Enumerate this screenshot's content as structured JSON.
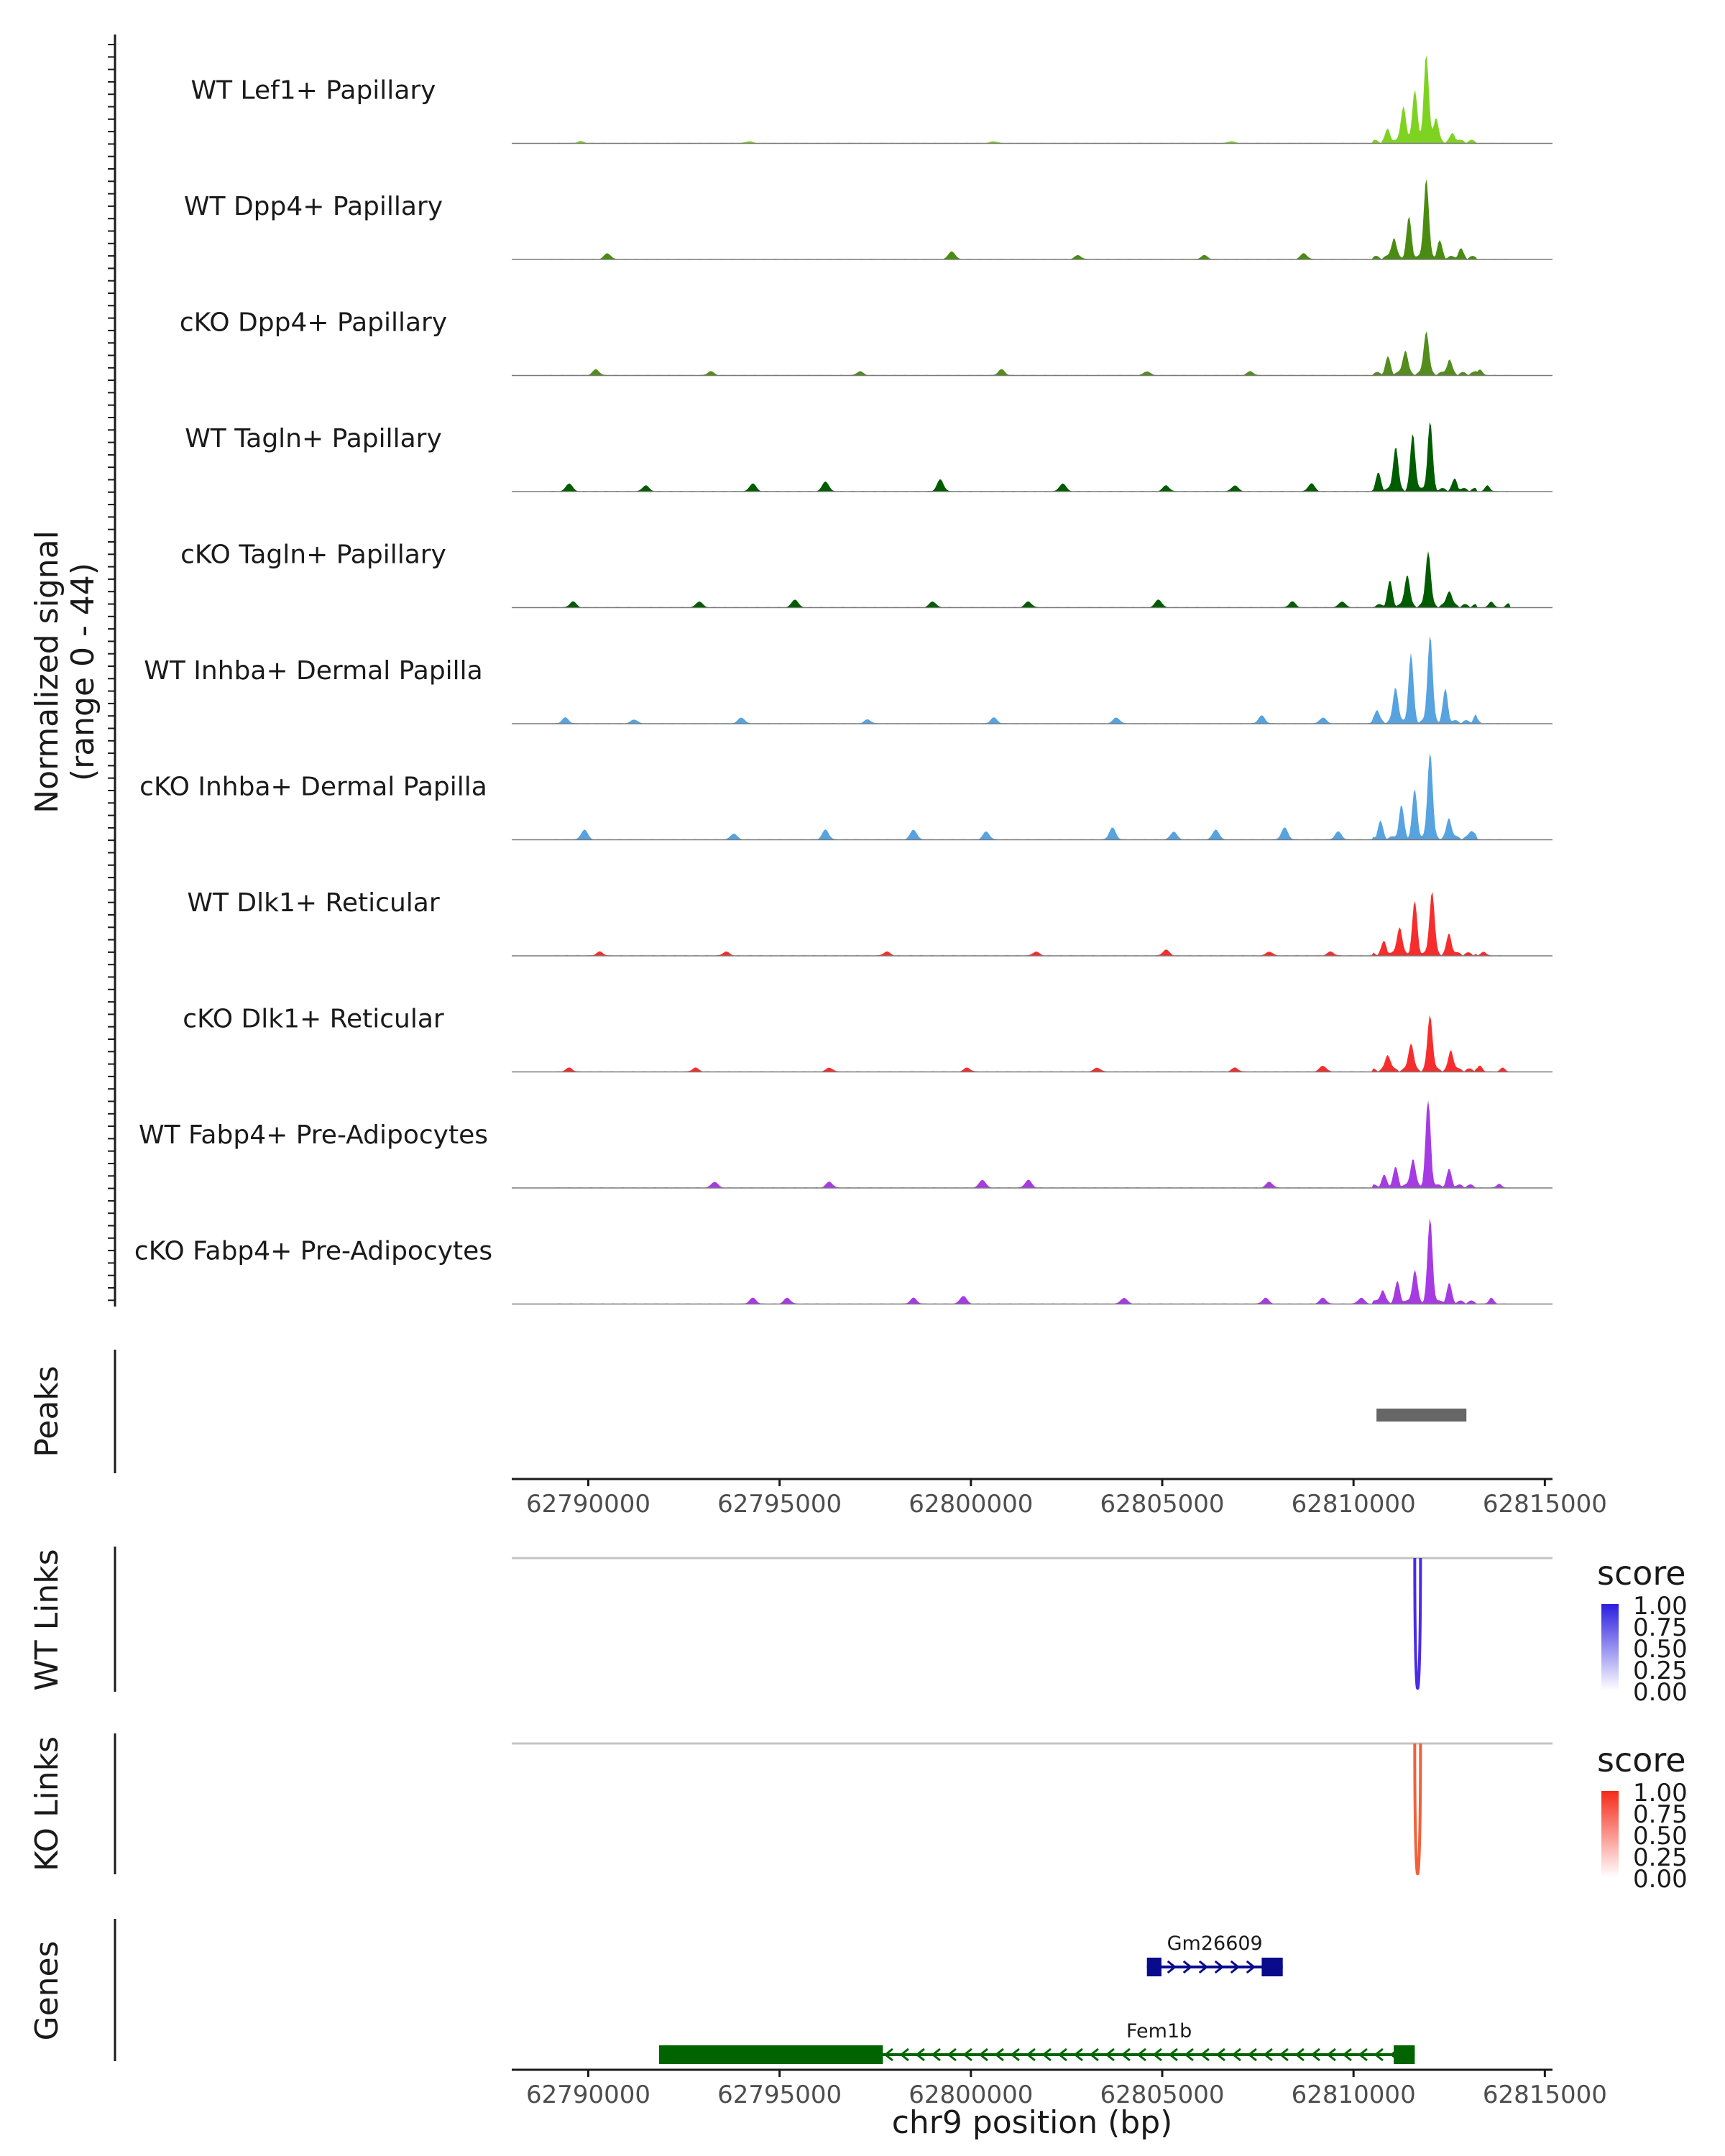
{
  "chart_data": {
    "type": "coverage-track",
    "y_axis_title": [
      "Normalized signal",
      "(range 0 - 44)"
    ],
    "y_range": [
      0,
      44
    ],
    "x_axis_title": "chr9 position (bp)",
    "x_range": [
      62788000,
      62815200
    ],
    "x_ticks": [
      62790000,
      62795000,
      62800000,
      62805000,
      62810000,
      62815000
    ],
    "x_tick_labels": [
      "62790000",
      "62795000",
      "62800000",
      "62805000",
      "62810000",
      "62815000"
    ],
    "tracks": [
      {
        "name": "WT Lef1+ Papillary",
        "color": "#7ed321",
        "peaks": [
          [
            62811900,
            44
          ],
          [
            62811600,
            26
          ],
          [
            62811300,
            18
          ],
          [
            62812150,
            12
          ],
          [
            62810900,
            6
          ],
          [
            62812600,
            4
          ]
        ],
        "noise": [
          [
            62789800,
            1
          ],
          [
            62794200,
            1
          ],
          [
            62800600,
            1
          ],
          [
            62806800,
            1
          ]
        ]
      },
      {
        "name": "WT Dpp4+ Papillary",
        "color": "#4a8c11",
        "peaks": [
          [
            62811900,
            40
          ],
          [
            62811450,
            20
          ],
          [
            62811050,
            10
          ],
          [
            62812250,
            8
          ],
          [
            62812800,
            4
          ]
        ],
        "noise": [
          [
            62790500,
            3
          ],
          [
            62799500,
            4
          ],
          [
            62802800,
            2
          ],
          [
            62806100,
            2
          ],
          [
            62808700,
            3
          ]
        ]
      },
      {
        "name": "cKO Dpp4+ Papillary",
        "color": "#548c1e",
        "peaks": [
          [
            62811900,
            22
          ],
          [
            62811350,
            12
          ],
          [
            62810900,
            8
          ],
          [
            62812500,
            7
          ],
          [
            62813300,
            3
          ]
        ],
        "noise": [
          [
            62790200,
            3
          ],
          [
            62793200,
            2
          ],
          [
            62797100,
            2
          ],
          [
            62800800,
            3
          ],
          [
            62804600,
            2
          ],
          [
            62807300,
            2
          ]
        ]
      },
      {
        "name": "WT Tagln+ Papillary",
        "color": "#005c00",
        "peaks": [
          [
            62812000,
            34
          ],
          [
            62811550,
            28
          ],
          [
            62811100,
            22
          ],
          [
            62810650,
            8
          ],
          [
            62812650,
            5
          ],
          [
            62813500,
            3
          ]
        ],
        "noise": [
          [
            62789500,
            4
          ],
          [
            62791500,
            3
          ],
          [
            62794300,
            4
          ],
          [
            62796200,
            5
          ],
          [
            62799200,
            6
          ],
          [
            62802400,
            4
          ],
          [
            62805100,
            3
          ],
          [
            62806900,
            3
          ],
          [
            62808900,
            4
          ]
        ]
      },
      {
        "name": "cKO Tagln+ Papillary",
        "color": "#005c00",
        "peaks": [
          [
            62811950,
            28
          ],
          [
            62811400,
            16
          ],
          [
            62810950,
            12
          ],
          [
            62812500,
            8
          ],
          [
            62813600,
            3
          ],
          [
            62814050,
            2
          ]
        ],
        "noise": [
          [
            62789600,
            3
          ],
          [
            62792900,
            3
          ],
          [
            62795400,
            4
          ],
          [
            62799000,
            3
          ],
          [
            62801500,
            3
          ],
          [
            62804900,
            4
          ],
          [
            62808400,
            3
          ],
          [
            62809700,
            3
          ]
        ]
      },
      {
        "name": "WT Inhba+ Dermal Papilla",
        "color": "#56a3e0",
        "peaks": [
          [
            62812000,
            44
          ],
          [
            62811500,
            34
          ],
          [
            62811100,
            18
          ],
          [
            62812400,
            16
          ],
          [
            62810600,
            6
          ],
          [
            62813200,
            3
          ]
        ],
        "noise": [
          [
            62789400,
            3
          ],
          [
            62791200,
            2
          ],
          [
            62794000,
            3
          ],
          [
            62797300,
            2
          ],
          [
            62800600,
            3
          ],
          [
            62803800,
            3
          ],
          [
            62807600,
            4
          ],
          [
            62809200,
            3
          ]
        ]
      },
      {
        "name": "cKO Inhba+ Dermal Papilla",
        "color": "#56a3e0",
        "peaks": [
          [
            62812000,
            44
          ],
          [
            62811600,
            24
          ],
          [
            62811250,
            16
          ],
          [
            62810700,
            8
          ],
          [
            62812500,
            10
          ],
          [
            62813100,
            4
          ]
        ],
        "noise": [
          [
            62789900,
            5
          ],
          [
            62793800,
            3
          ],
          [
            62796200,
            5
          ],
          [
            62798500,
            5
          ],
          [
            62800400,
            4
          ],
          [
            62803700,
            6
          ],
          [
            62805300,
            4
          ],
          [
            62806400,
            5
          ],
          [
            62808200,
            6
          ],
          [
            62809600,
            4
          ]
        ]
      },
      {
        "name": "WT Dlk1+ Reticular",
        "color": "#f72d2d",
        "peaks": [
          [
            62812050,
            32
          ],
          [
            62811600,
            26
          ],
          [
            62811200,
            14
          ],
          [
            62812500,
            10
          ],
          [
            62810800,
            6
          ],
          [
            62813400,
            2
          ]
        ],
        "noise": [
          [
            62790300,
            2
          ],
          [
            62793600,
            2
          ],
          [
            62797800,
            2
          ],
          [
            62801700,
            2
          ],
          [
            62805100,
            3
          ],
          [
            62807800,
            2
          ],
          [
            62809400,
            2
          ]
        ]
      },
      {
        "name": "cKO Dlk1+ Reticular",
        "color": "#f72d2d",
        "peaks": [
          [
            62812000,
            28
          ],
          [
            62811500,
            14
          ],
          [
            62810900,
            8
          ],
          [
            62812550,
            10
          ],
          [
            62813300,
            3
          ],
          [
            62813900,
            2
          ]
        ],
        "noise": [
          [
            62789500,
            2
          ],
          [
            62792800,
            2
          ],
          [
            62796300,
            2
          ],
          [
            62799900,
            2
          ],
          [
            62803300,
            2
          ],
          [
            62806900,
            2
          ],
          [
            62809200,
            3
          ]
        ]
      },
      {
        "name": "WT Fabp4+ Pre-Adipocytes",
        "color": "#a73be3",
        "peaks": [
          [
            62811950,
            44
          ],
          [
            62811550,
            14
          ],
          [
            62811100,
            9
          ],
          [
            62812500,
            8
          ],
          [
            62810800,
            5
          ],
          [
            62813800,
            2
          ]
        ],
        "noise": [
          [
            62793300,
            3
          ],
          [
            62796300,
            3
          ],
          [
            62800300,
            4
          ],
          [
            62801500,
            4
          ],
          [
            62807800,
            3
          ]
        ]
      },
      {
        "name": "cKO Fabp4+ Pre-Adipocytes",
        "color": "#a73be3",
        "peaks": [
          [
            62812000,
            42
          ],
          [
            62811600,
            16
          ],
          [
            62811150,
            10
          ],
          [
            62812500,
            9
          ],
          [
            62810750,
            6
          ],
          [
            62813600,
            3
          ]
        ],
        "noise": [
          [
            62794300,
            3
          ],
          [
            62795200,
            3
          ],
          [
            62798500,
            3
          ],
          [
            62799800,
            4
          ],
          [
            62804000,
            3
          ],
          [
            62807700,
            3
          ],
          [
            62809200,
            3
          ],
          [
            62810200,
            3
          ]
        ]
      }
    ],
    "peaks_track": {
      "label": "Peaks",
      "regions": [
        [
          62810600,
          62812950
        ]
      ],
      "color": "#666666"
    },
    "link_tracks": [
      {
        "label": "WT Links",
        "color": "#4a2be8",
        "link": [
          62811600,
          62811750
        ],
        "score": 1.0
      },
      {
        "label": "KO Links",
        "color": "#f2603a",
        "link": [
          62811600,
          62811750
        ],
        "score": 1.0
      }
    ],
    "legends": [
      {
        "title": "score",
        "ticks": [
          "1.00",
          "0.75",
          "0.50",
          "0.25",
          "0.00"
        ],
        "color_high": "#2b1ee0",
        "color_low": "#ffffff"
      },
      {
        "title": "score",
        "ticks": [
          "1.00",
          "0.75",
          "0.50",
          "0.25",
          "0.00"
        ],
        "color_high": "#f52a1a",
        "color_low": "#ffffff"
      }
    ],
    "genes_track": {
      "label": "Genes",
      "genes": [
        {
          "name": "Gm26609",
          "start": 62804600,
          "end": 62808150,
          "strand": "+",
          "color": "#0a0a8c",
          "exons": [
            [
              62804600,
              62804980
            ],
            [
              62807600,
              62808150
            ]
          ]
        },
        {
          "name": "Fem1b",
          "start": 62791850,
          "end": 62811600,
          "strand": "-",
          "color": "#006400",
          "exons": [
            [
              62791850,
              62797700
            ],
            [
              62811050,
              62811600
            ]
          ]
        }
      ]
    }
  }
}
